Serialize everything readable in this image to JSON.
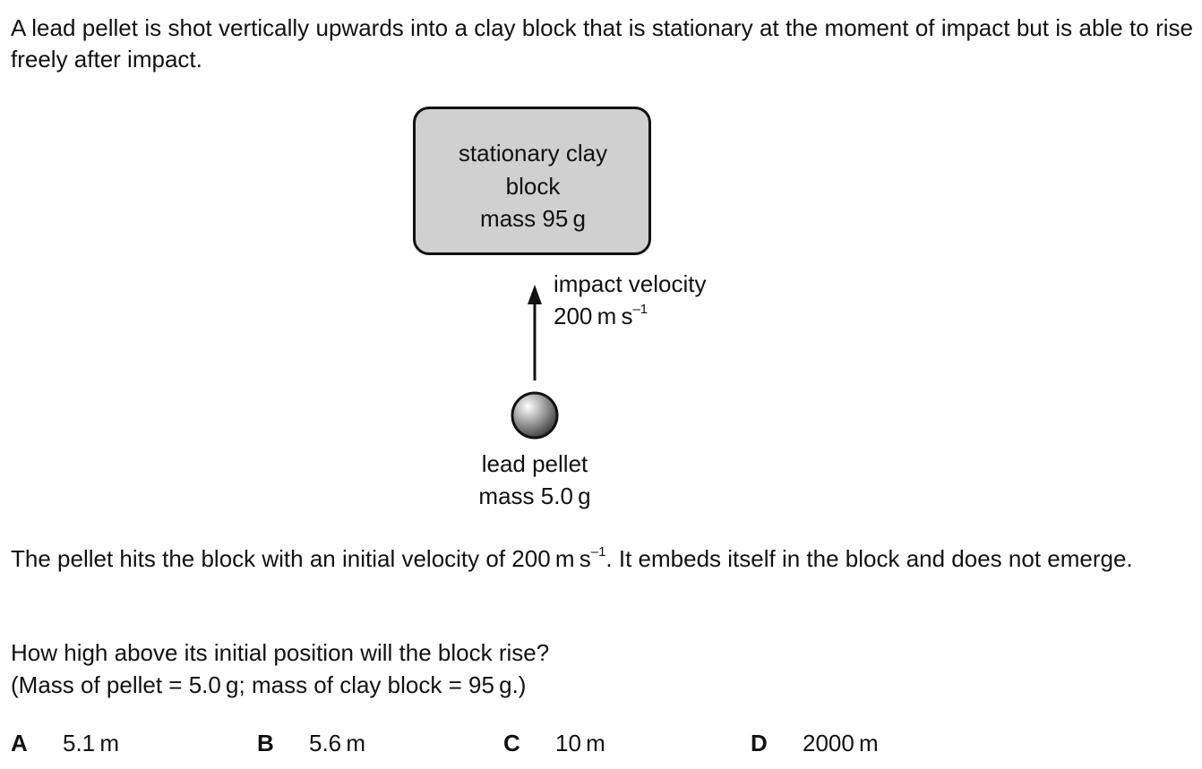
{
  "question": {
    "intro": "A lead pellet is shot vertically upwards into a clay block that is stationary at the moment of impact but is able to rise freely after impact.",
    "para1_before": "The pellet hits the block with an initial velocity of 200 m s",
    "para1_sup": "–1",
    "para1_after": ". It embeds itself in the block and does not emerge.",
    "prompt": "How high above its initial position will the block rise?",
    "given": "(Mass of pellet = 5.0 g; mass of clay block = 95 g.)"
  },
  "diagram": {
    "block_label_line1": "stationary clay",
    "block_label_line2": "block",
    "block_label_line3": "mass 95 g",
    "velocity_label_line1": "impact velocity",
    "velocity_label_value": "200 m s",
    "velocity_label_sup": "–1",
    "pellet_label_line1": "lead pellet",
    "pellet_label_line2": "mass 5.0 g",
    "block_fill": "#d0d0d0",
    "outline_color": "#111111"
  },
  "options": [
    {
      "letter": "A",
      "value": "5.1 m"
    },
    {
      "letter": "B",
      "value": "5.6 m"
    },
    {
      "letter": "C",
      "value": "10 m"
    },
    {
      "letter": "D",
      "value": "2000 m"
    }
  ]
}
